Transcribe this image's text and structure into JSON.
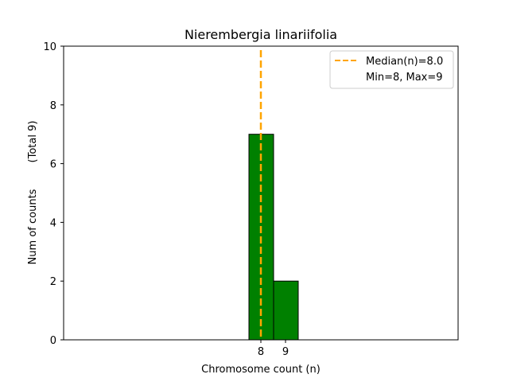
{
  "chart_data": {
    "type": "bar",
    "title": "Nierembergia linariifolia",
    "xlabel": "Chromosome count (n)",
    "ylabel": "Num of counts",
    "ylabel_total": "(Total 9)",
    "categories": [
      "8",
      "9"
    ],
    "x": [
      8,
      9
    ],
    "values": [
      7,
      2
    ],
    "ylim": [
      0,
      10
    ],
    "yticks": [
      0,
      2,
      4,
      6,
      8,
      10
    ],
    "bar_color": "#008000",
    "bar_edge_color": "#000000",
    "median": {
      "value": 8.0,
      "label": "Median(n)=8.0",
      "color": "#FFA500"
    },
    "legend": {
      "placement": "top-right",
      "entries": [
        "Median(n)=8.0",
        "Min=8, Max=9"
      ]
    },
    "grid": false
  }
}
